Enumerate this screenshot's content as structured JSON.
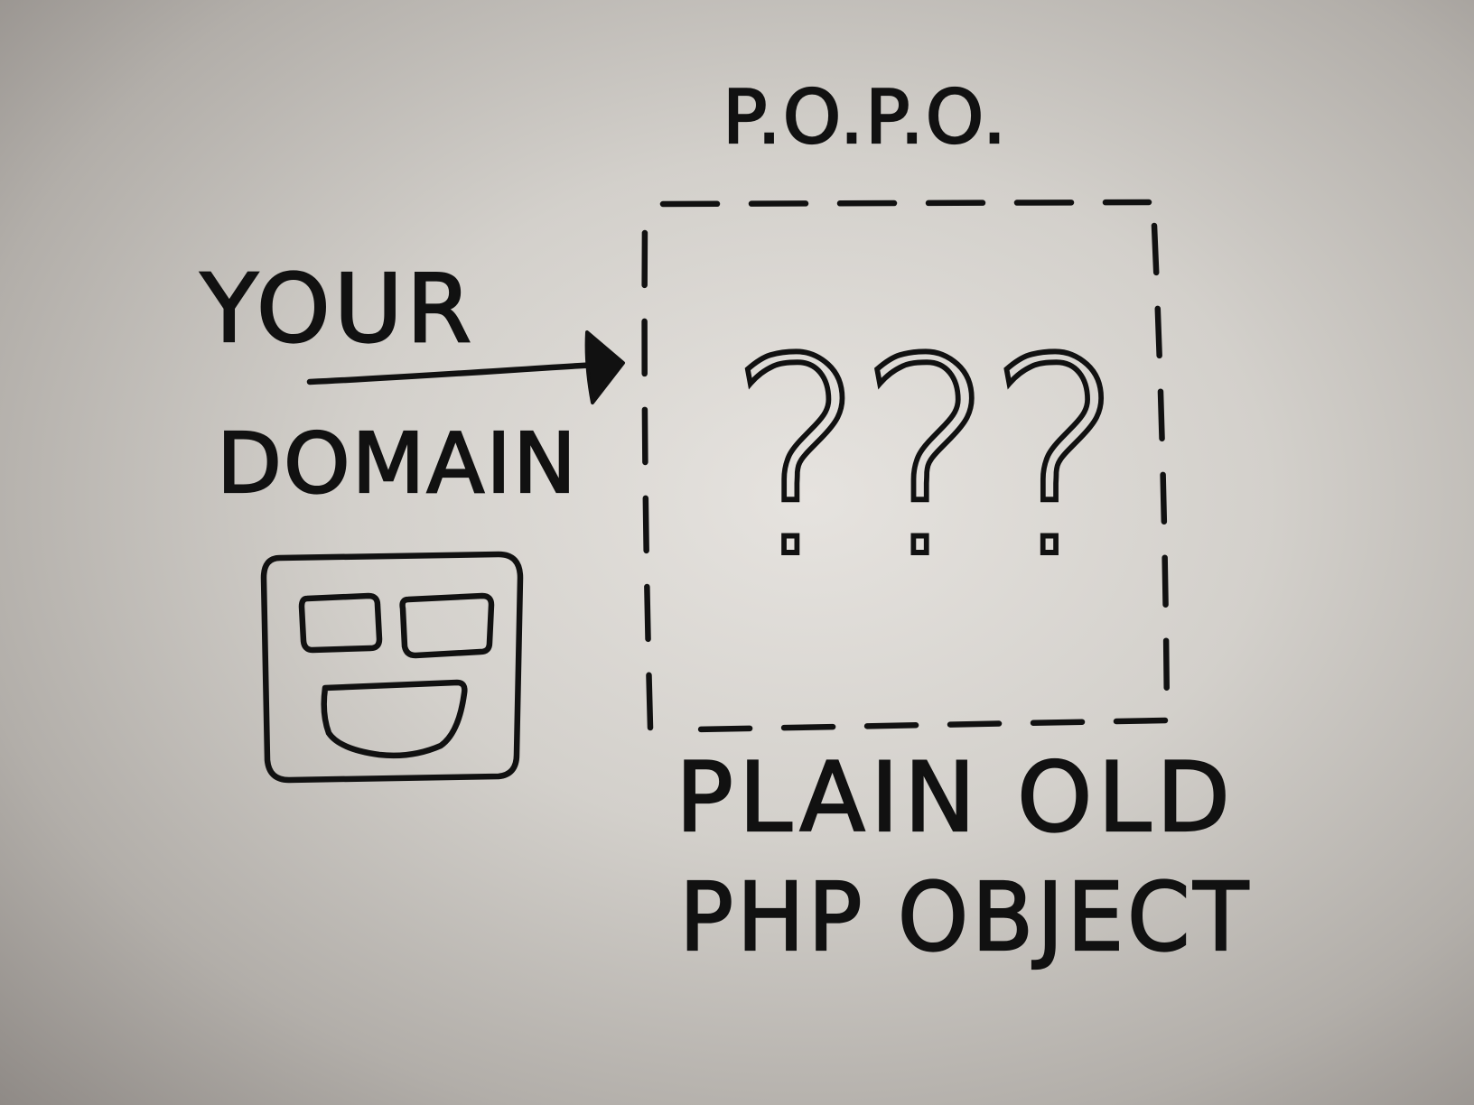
{
  "diagram": {
    "title": "P.O.P.O.",
    "left_label_top": "YOUR",
    "left_label_bottom": "DOMAIN",
    "box_content": "???",
    "caption_line1": "PLAIN OLD",
    "caption_line2": "PHP OBJECT"
  },
  "colors": {
    "ink": "#111111",
    "board": "#d3d0cb"
  },
  "icons": {
    "domain_symbol": "square-face-icon",
    "pointer": "arrow-right-icon"
  }
}
